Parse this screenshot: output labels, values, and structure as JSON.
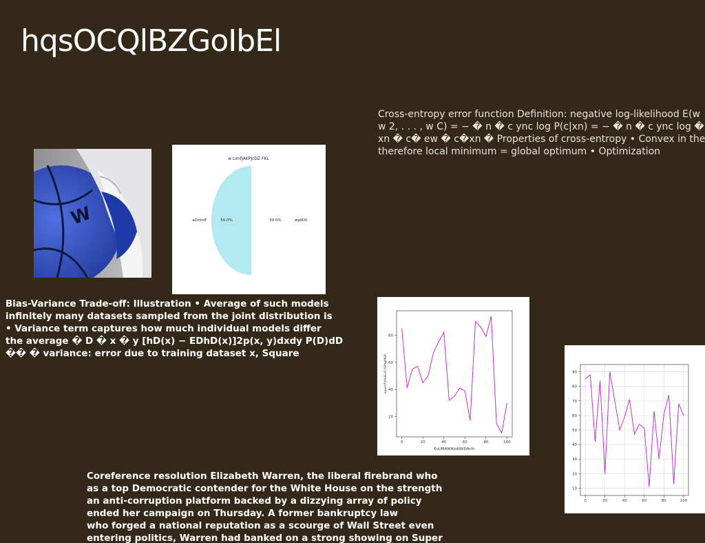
{
  "slide": {
    "title": "hqsOCQlBZGoIbEl",
    "background": "#342919"
  },
  "right_text": "Cross-entropy error function Definition: negative log-likelihood E(w\nw 2, . . . , w C) = − � n � c ync log P(c|xn) = − � n � c ync log � ew �\nxn � c� ew � c�xn � Properties of cross-entropy • Convex in the w\ntherefore local minimum = global optimum • Optimization",
  "bias_text": "Bias-Variance Trade-off: Illustration • Average of such models\ninfinitely many datasets sampled from the joint distribution is\n• Variance term captures how much individual models differ\nthe average � D � x � y [hD(x) − EDhD(x)]2p(x, y)dxdy P(D)dD\n�� � variance: error due to training dataset x, Square",
  "coref_text": "Coreference resolution Elizabeth Warren, the liberal firebrand who\nas a top Democratic contender for the White House on the strength\nan anti-corruption platform backed by a dizzying array of policy\nended her campaign on Thursday. A former bankruptcy law\nwho forged a national reputation as a scourge of Wall Street even\nentering politics, Warren had banked on a strong showing on Super",
  "photo": {
    "description_icon": "basketball-and-sneaker-photo",
    "colors": {
      "ball": "#2f4fc0",
      "shoe": "#e8e8ea",
      "bg": "#a9a9ad"
    }
  },
  "chart_data": [
    {
      "type": "pie",
      "title": "w LimfJAKPJcDZ FKL",
      "slices": [
        {
          "label": "aDclmE",
          "value": 50.0,
          "pct_label": "50.0%",
          "color": "#97ab97"
        },
        {
          "label": "wpIKXl",
          "value": 50.0,
          "pct_label": "50.0%",
          "color": "#b3eaf2"
        }
      ]
    },
    {
      "type": "line",
      "xlabel": "EvUMAWiKoAiWDAcfn",
      "ylabel": "hyomPVKkiEuFcSPhgMOX",
      "color": "#c22fd9",
      "xlim": [
        -5,
        105
      ],
      "ylim": [
        5,
        98
      ],
      "xticks": [
        0,
        20,
        40,
        60,
        80,
        100
      ],
      "yticks": [
        20,
        40,
        60,
        80
      ],
      "grid": false,
      "x": [
        0,
        5,
        10,
        15,
        20,
        25,
        30,
        35,
        40,
        45,
        50,
        55,
        60,
        65,
        70,
        75,
        80,
        85,
        90,
        95,
        100
      ],
      "y": [
        85,
        41,
        55,
        57,
        45,
        50,
        67,
        75,
        82,
        32,
        35,
        41,
        39,
        17,
        90,
        86,
        79,
        94,
        15,
        8,
        30
      ]
    },
    {
      "type": "line",
      "xlabel": "",
      "ylabel": "",
      "color": "#c22fd9",
      "xlim": [
        -5,
        105
      ],
      "ylim": [
        5,
        95
      ],
      "xticks": [
        0,
        20,
        40,
        60,
        80,
        100
      ],
      "yticks": [
        10,
        20,
        30,
        40,
        50,
        60,
        70,
        80,
        90
      ],
      "grid": true,
      "x": [
        0,
        5,
        10,
        15,
        20,
        25,
        30,
        35,
        40,
        45,
        50,
        55,
        60,
        65,
        70,
        75,
        80,
        85,
        90,
        95,
        100
      ],
      "y": [
        85,
        88,
        42,
        84,
        20,
        90,
        70,
        50,
        59,
        71,
        47,
        54,
        51,
        11,
        63,
        30,
        61,
        74,
        13,
        68,
        60
      ]
    }
  ]
}
